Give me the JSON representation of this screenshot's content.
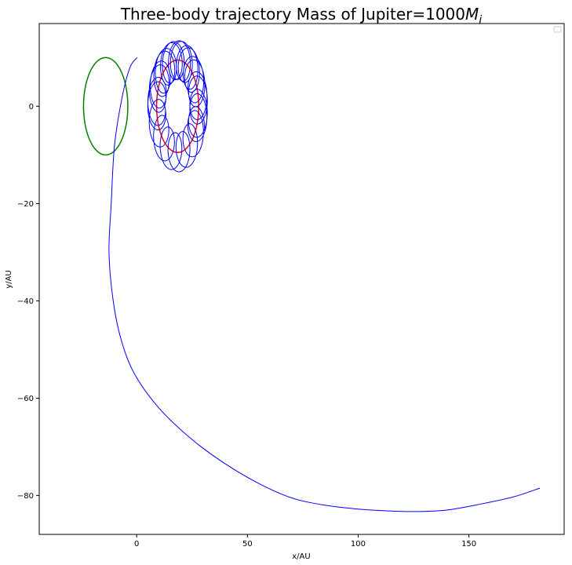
{
  "chart_data": {
    "type": "line",
    "title": "Three-body trajectory  Mass of Jupiter=1000",
    "title_math": "M",
    "title_math_sub": "j",
    "xlabel": "x/AU",
    "ylabel": "y/AU",
    "xlim": [
      -44,
      193
    ],
    "ylim": [
      -88,
      17
    ],
    "xticks": [
      0,
      50,
      100,
      150
    ],
    "yticks": [
      0,
      -20,
      -40,
      -60,
      -80
    ],
    "legend": "top-right",
    "grid": false,
    "series": [
      {
        "color": "#008000",
        "kind": "circle",
        "center": [
          -14,
          0
        ],
        "radius": 10
      },
      {
        "color": "#ff0000",
        "kind": "circle",
        "center": [
          18.5,
          0
        ],
        "radius": 9.5
      },
      {
        "color": "#0000ff",
        "kind": "loops",
        "guide_center": [
          18.5,
          0
        ],
        "guide_radius": 9.5,
        "loop_radius": 4,
        "turns": 1.6,
        "loops": 26,
        "start_angle_deg": 185
      },
      {
        "color": "#0000ff",
        "kind": "path",
        "x": [
          0.2,
          -3,
          -6.5,
          -10,
          -11.5,
          -12.5,
          -10.6,
          -7,
          -1,
          10,
          25,
          40,
          55,
          70,
          85,
          100,
          115,
          127,
          140,
          155,
          170,
          182
        ],
        "y": [
          10,
          8,
          2,
          -8,
          -20,
          -30,
          -40,
          -48,
          -55,
          -62,
          -68.5,
          -73.5,
          -77.5,
          -80.5,
          -82,
          -82.8,
          -83.2,
          -83.3,
          -83,
          -81.8,
          -80.3,
          -78.5
        ]
      }
    ]
  }
}
